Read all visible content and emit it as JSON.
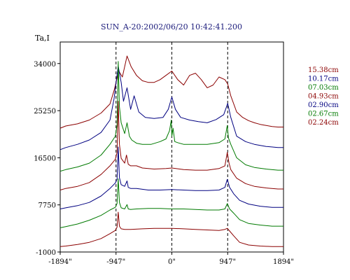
{
  "chart_data": {
    "type": "line",
    "title": "SUN_A-20:2002/06/20 10:42:41.200",
    "ylabel": "Ta,I",
    "xlabel": "",
    "xlim": [
      -1894,
      1894
    ],
    "ylim": [
      -1000,
      38000
    ],
    "x_ticks": [
      {
        "value": -1894,
        "label": "-1894\""
      },
      {
        "value": -947,
        "label": "-947\""
      },
      {
        "value": 0,
        "label": "0\""
      },
      {
        "value": 947,
        "label": "947\""
      },
      {
        "value": 1894,
        "label": "1894\""
      }
    ],
    "y_ticks": [
      {
        "value": 34000,
        "label": "34000"
      },
      {
        "value": 25250,
        "label": "25250"
      },
      {
        "value": 16500,
        "label": "16500"
      },
      {
        "value": 7750,
        "label": "7750"
      },
      {
        "value": -1000,
        "label": "-1000"
      }
    ],
    "vertical_lines": [
      -947,
      0,
      947
    ],
    "grid": false,
    "legend_position": "right",
    "series": [
      {
        "name": "15.38cm",
        "color": "#8b0000",
        "x": [
          -1894,
          -1800,
          -1600,
          -1400,
          -1200,
          -1050,
          -980,
          -900,
          -840,
          -760,
          -690,
          -600,
          -500,
          -400,
          -300,
          -200,
          -100,
          0,
          100,
          200,
          300,
          400,
          500,
          600,
          700,
          800,
          900,
          947,
          1000,
          1100,
          1200,
          1300,
          1400,
          1500,
          1600,
          1700,
          1800,
          1894
        ],
        "y": [
          22000,
          22400,
          22800,
          23500,
          24800,
          26500,
          29000,
          32600,
          31500,
          35400,
          33400,
          31800,
          30800,
          30500,
          30500,
          31000,
          31800,
          32600,
          31000,
          30000,
          31800,
          32200,
          31000,
          29500,
          30000,
          31500,
          31000,
          30200,
          28000,
          25000,
          24000,
          23400,
          23000,
          22700,
          22500,
          22300,
          22200,
          22200
        ]
      },
      {
        "name": "10.17cm",
        "color": "#000080",
        "x": [
          -1894,
          -1800,
          -1600,
          -1400,
          -1200,
          -1050,
          -980,
          -940,
          -910,
          -860,
          -820,
          -760,
          -700,
          -640,
          -560,
          -450,
          -300,
          -150,
          -60,
          0,
          60,
          150,
          300,
          450,
          600,
          750,
          880,
          947,
          1000,
          1100,
          1250,
          1400,
          1600,
          1800,
          1894
        ],
        "y": [
          18000,
          18400,
          19000,
          19800,
          21200,
          23500,
          27500,
          31000,
          33500,
          30500,
          27000,
          29500,
          25500,
          28000,
          25000,
          24000,
          23800,
          24000,
          25500,
          27800,
          25500,
          24000,
          23500,
          23200,
          23000,
          23600,
          24500,
          26600,
          24000,
          20500,
          19500,
          19000,
          18600,
          18400,
          18400
        ]
      },
      {
        "name": "07.03cm",
        "color": "#007a00",
        "x": [
          -1894,
          -1800,
          -1600,
          -1400,
          -1200,
          -1050,
          -960,
          -930,
          -910,
          -890,
          -860,
          -800,
          -760,
          -720,
          -680,
          -600,
          -500,
          -350,
          -200,
          -100,
          -40,
          -10,
          0,
          20,
          50,
          100,
          200,
          400,
          600,
          800,
          900,
          940,
          960,
          1000,
          1100,
          1250,
          1400,
          1600,
          1800,
          1894
        ],
        "y": [
          14000,
          14300,
          14800,
          15500,
          17000,
          19000,
          20500,
          22500,
          34400,
          26000,
          23000,
          21000,
          23000,
          20500,
          19800,
          19200,
          19000,
          19000,
          19500,
          20000,
          21500,
          23500,
          20500,
          22000,
          19500,
          19300,
          19000,
          19000,
          19000,
          19300,
          20000,
          22500,
          20200,
          19000,
          16500,
          15200,
          14700,
          14400,
          14200,
          14200
        ]
      },
      {
        "name": "04.93cm",
        "color": "#8b0000",
        "x": [
          -1894,
          -1800,
          -1600,
          -1400,
          -1200,
          -1050,
          -960,
          -930,
          -910,
          -890,
          -860,
          -800,
          -770,
          -740,
          -700,
          -600,
          -500,
          -300,
          -100,
          0,
          200,
          400,
          600,
          800,
          900,
          940,
          970,
          1000,
          1100,
          1250,
          1400,
          1600,
          1800,
          1894
        ],
        "y": [
          10500,
          10800,
          11200,
          11900,
          13400,
          15000,
          16200,
          17500,
          27000,
          19000,
          16400,
          15500,
          17000,
          15300,
          15000,
          15000,
          14600,
          14400,
          14500,
          14600,
          14300,
          14200,
          14200,
          14500,
          15000,
          17500,
          15500,
          14300,
          12700,
          11700,
          11200,
          10900,
          10700,
          10700
        ]
      },
      {
        "name": "02.90cm",
        "color": "#000080",
        "x": [
          -1894,
          -1800,
          -1600,
          -1400,
          -1200,
          -1050,
          -960,
          -930,
          -910,
          -890,
          -860,
          -800,
          -760,
          -740,
          -700,
          -600,
          -400,
          -200,
          0,
          200,
          400,
          600,
          800,
          900,
          940,
          980,
          1050,
          1150,
          1300,
          1500,
          1700,
          1894
        ],
        "y": [
          7000,
          7200,
          7600,
          8200,
          9400,
          10800,
          11800,
          12500,
          18500,
          12800,
          11500,
          11200,
          12200,
          11000,
          10800,
          10800,
          10500,
          10500,
          10600,
          10500,
          10400,
          10400,
          10500,
          11000,
          12500,
          11000,
          9800,
          8600,
          7900,
          7500,
          7300,
          7300
        ]
      },
      {
        "name": "02.67cm",
        "color": "#007a00",
        "x": [
          -1894,
          -1800,
          -1600,
          -1400,
          -1200,
          -1050,
          -960,
          -930,
          -910,
          -890,
          -860,
          -800,
          -760,
          -740,
          -700,
          -600,
          -400,
          -200,
          0,
          200,
          400,
          600,
          800,
          900,
          940,
          980,
          1050,
          1150,
          1300,
          1500,
          1700,
          1894
        ],
        "y": [
          3500,
          3700,
          4200,
          4900,
          5800,
          6800,
          7300,
          8000,
          12600,
          8200,
          7200,
          7000,
          7800,
          7000,
          6900,
          7000,
          7100,
          7100,
          7000,
          7000,
          6900,
          6800,
          6800,
          7000,
          8000,
          7000,
          6200,
          5000,
          4300,
          4000,
          3800,
          3800
        ]
      },
      {
        "name": "02.24cm",
        "color": "#8b0000",
        "x": [
          -1894,
          -1800,
          -1600,
          -1400,
          -1200,
          -1050,
          -960,
          -930,
          -910,
          -890,
          -860,
          -800,
          -700,
          -500,
          -300,
          -100,
          0,
          200,
          400,
          600,
          800,
          900,
          940,
          980,
          1050,
          1150,
          1300,
          1500,
          1700,
          1894
        ],
        "y": [
          0,
          100,
          400,
          800,
          1500,
          2400,
          3000,
          3600,
          6400,
          3800,
          3300,
          3200,
          3200,
          3300,
          3400,
          3400,
          3400,
          3300,
          3200,
          3100,
          3000,
          3200,
          3400,
          2900,
          2000,
          800,
          300,
          100,
          0,
          0
        ]
      }
    ]
  }
}
